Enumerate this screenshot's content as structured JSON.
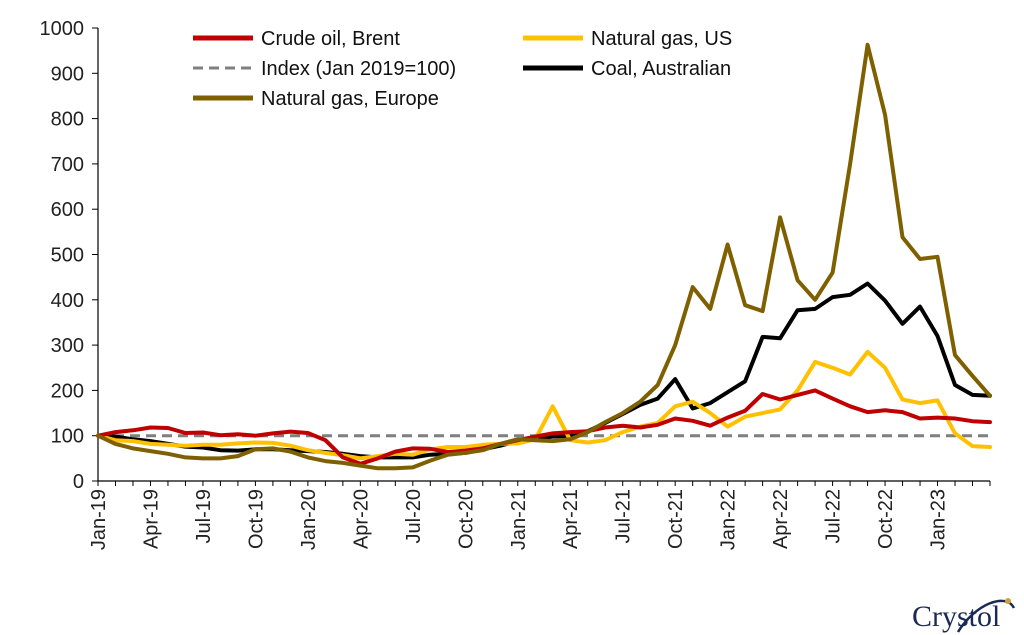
{
  "chart_data": {
    "type": "line",
    "title": "",
    "xlabel": "",
    "ylabel": "",
    "ylim": [
      0,
      1000
    ],
    "yticks": [
      0,
      100,
      200,
      300,
      400,
      500,
      600,
      700,
      800,
      900,
      1000
    ],
    "grid": false,
    "legend_position": "top",
    "categories": [
      "Jan-19",
      "Feb-19",
      "Mar-19",
      "Apr-19",
      "May-19",
      "Jun-19",
      "Jul-19",
      "Aug-19",
      "Sep-19",
      "Oct-19",
      "Nov-19",
      "Dec-19",
      "Jan-20",
      "Feb-20",
      "Mar-20",
      "Apr-20",
      "May-20",
      "Jun-20",
      "Jul-20",
      "Aug-20",
      "Sep-20",
      "Oct-20",
      "Nov-20",
      "Dec-20",
      "Jan-21",
      "Feb-21",
      "Mar-21",
      "Apr-21",
      "May-21",
      "Jun-21",
      "Jul-21",
      "Aug-21",
      "Sep-21",
      "Oct-21",
      "Nov-21",
      "Dec-21",
      "Jan-22",
      "Feb-22",
      "Mar-22",
      "Apr-22",
      "May-22",
      "Jun-22",
      "Jul-22",
      "Aug-22",
      "Sep-22",
      "Oct-22",
      "Nov-22",
      "Dec-22",
      "Jan-23",
      "Feb-23",
      "Mar-23",
      "Apr-23"
    ],
    "tick_labels": [
      "Jan-19",
      "Apr-19",
      "Jul-19",
      "Oct-19",
      "Jan-20",
      "Apr-20",
      "Jul-20",
      "Oct-20",
      "Jan-21",
      "Apr-21",
      "Jul-21",
      "Oct-21",
      "Jan-22",
      "Apr-22",
      "Jul-22",
      "Oct-22",
      "Jan-23"
    ],
    "series": [
      {
        "name": "Crude oil, Brent",
        "color": "#c00000",
        "values": [
          100,
          108,
          112,
          118,
          117,
          106,
          107,
          101,
          103,
          100,
          105,
          109,
          106,
          90,
          52,
          38,
          50,
          65,
          72,
          71,
          64,
          67,
          72,
          82,
          90,
          98,
          105,
          108,
          110,
          118,
          122,
          118,
          124,
          138,
          133,
          122,
          140,
          155,
          192,
          180,
          190,
          200,
          182,
          165,
          152,
          156,
          152,
          138,
          140,
          138,
          132,
          130
        ]
      },
      {
        "name": "Natural gas, US",
        "color": "#ffc000",
        "values": [
          100,
          90,
          88,
          82,
          80,
          78,
          80,
          80,
          83,
          85,
          84,
          78,
          68,
          62,
          57,
          50,
          55,
          60,
          58,
          70,
          75,
          75,
          80,
          82,
          83,
          92,
          165,
          90,
          85,
          90,
          108,
          120,
          128,
          165,
          175,
          150,
          120,
          142,
          150,
          158,
          200,
          263,
          250,
          235,
          285,
          250,
          180,
          172,
          178,
          105,
          77,
          75
        ]
      },
      {
        "name": "Index (Jan 2019=100)",
        "color": "#7f7f7f",
        "dashed": true,
        "values": [
          100,
          100,
          100,
          100,
          100,
          100,
          100,
          100,
          100,
          100,
          100,
          100,
          100,
          100,
          100,
          100,
          100,
          100,
          100,
          100,
          100,
          100,
          100,
          100,
          100,
          100,
          100,
          100,
          100,
          100,
          100,
          100,
          100,
          100,
          100,
          100,
          100,
          100,
          100,
          100,
          100,
          100,
          100,
          100,
          100,
          100,
          100,
          100,
          100,
          100,
          100,
          100
        ]
      },
      {
        "name": "Coal, Australian",
        "color": "#000000",
        "values": [
          100,
          98,
          92,
          88,
          82,
          76,
          74,
          68,
          67,
          70,
          70,
          68,
          66,
          64,
          60,
          55,
          52,
          52,
          52,
          58,
          60,
          62,
          70,
          78,
          88,
          94,
          98,
          100,
          110,
          128,
          148,
          168,
          182,
          225,
          160,
          172,
          196,
          220,
          318,
          315,
          377,
          380,
          406,
          411,
          436,
          398,
          347,
          385,
          320,
          212,
          190,
          188
        ]
      },
      {
        "name": "Natural gas, Europe",
        "color": "#7f6000",
        "values": [
          100,
          82,
          72,
          66,
          60,
          52,
          50,
          50,
          55,
          70,
          72,
          65,
          52,
          44,
          40,
          34,
          28,
          28,
          30,
          45,
          58,
          62,
          68,
          82,
          92,
          90,
          88,
          92,
          108,
          130,
          150,
          175,
          212,
          300,
          428,
          380,
          522,
          388,
          375,
          582,
          443,
          400,
          460,
          700,
          963,
          808,
          538,
          490,
          495,
          278,
          232,
          188
        ]
      }
    ]
  },
  "legend": {
    "items": [
      {
        "label": "Crude oil, Brent"
      },
      {
        "label": "Natural gas, US"
      },
      {
        "label": "Index (Jan 2019=100)"
      },
      {
        "label": "Coal, Australian"
      },
      {
        "label": "Natural gas, Europe"
      }
    ]
  },
  "logo": {
    "text": "Crystol"
  }
}
